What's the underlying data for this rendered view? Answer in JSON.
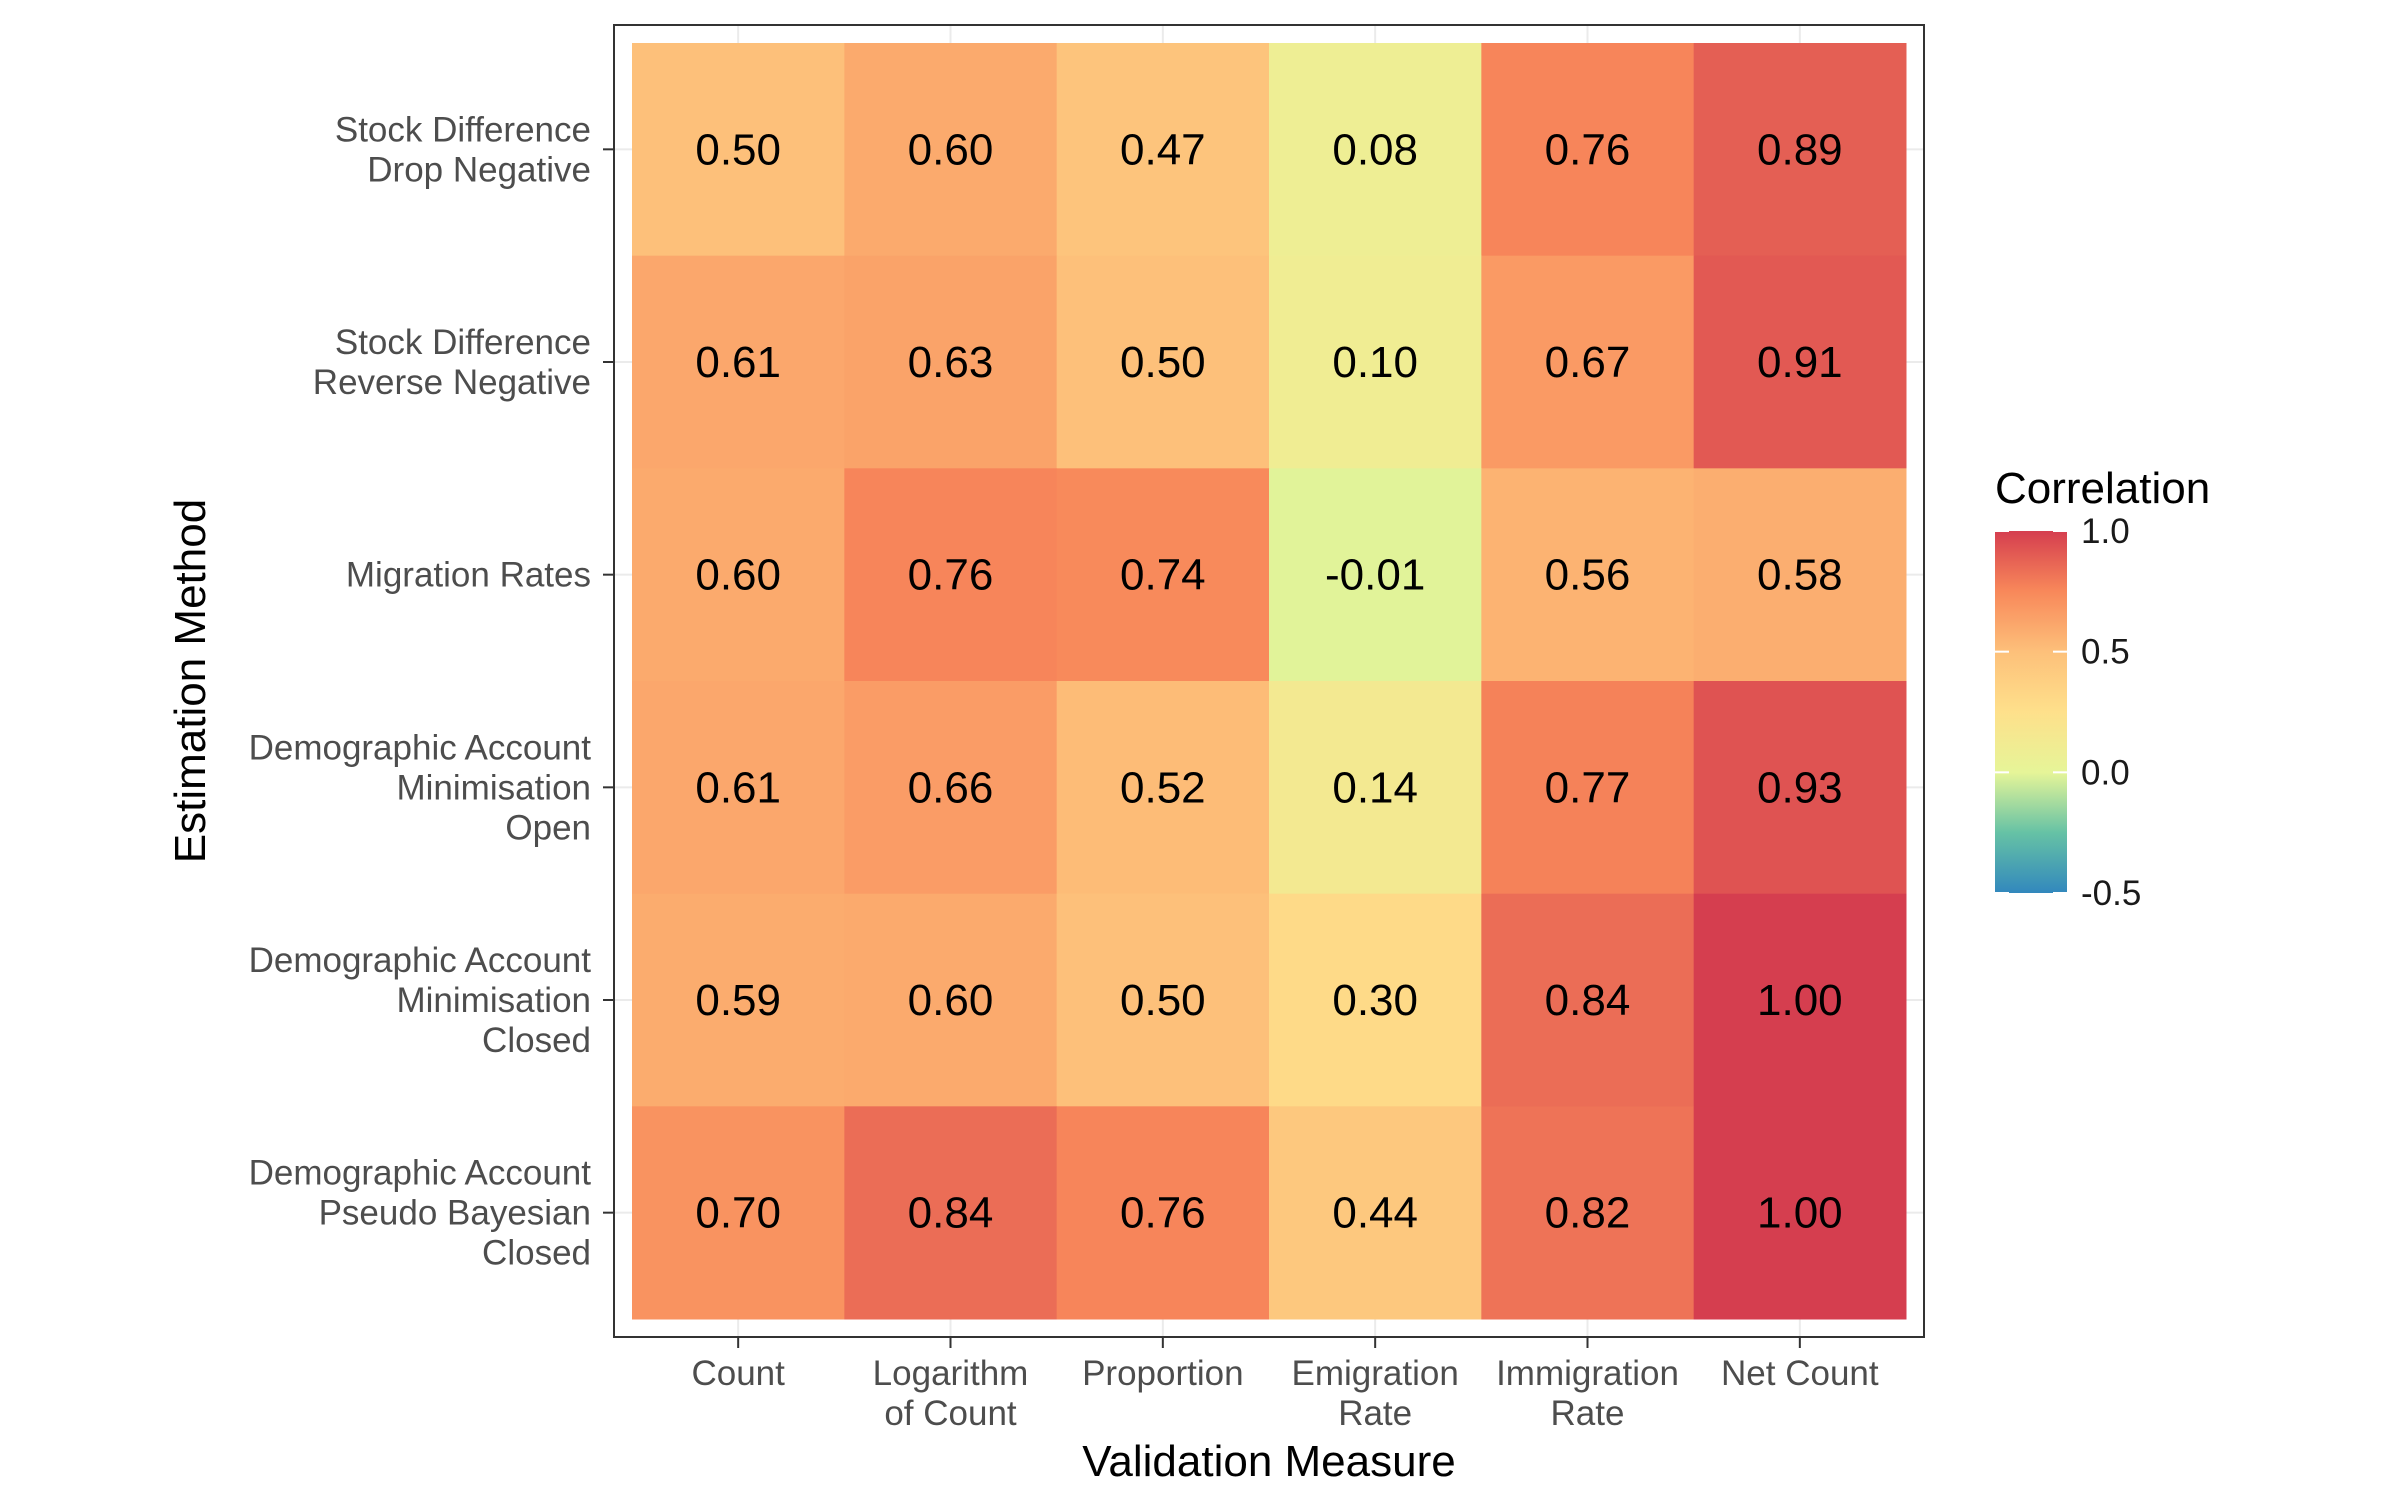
{
  "chart_data": {
    "type": "heatmap",
    "xlabel": "Validation Measure",
    "ylabel": "Estimation Method",
    "x_categories": [
      [
        "Count"
      ],
      [
        "Logarithm",
        "of Count"
      ],
      [
        "Proportion"
      ],
      [
        "Emigration",
        "Rate"
      ],
      [
        "Immigration",
        "Rate"
      ],
      [
        "Net Count"
      ]
    ],
    "y_categories": [
      [
        "Stock Difference",
        "Drop Negative"
      ],
      [
        "Stock Difference",
        "Reverse Negative"
      ],
      [
        "Migration Rates"
      ],
      [
        "Demographic Account",
        "Minimisation",
        "Open"
      ],
      [
        "Demographic Account",
        "Minimisation",
        "Closed"
      ],
      [
        "Demographic Account",
        "Pseudo Bayesian",
        "Closed"
      ]
    ],
    "values": [
      [
        0.5,
        0.6,
        0.47,
        0.08,
        0.76,
        0.89
      ],
      [
        0.61,
        0.63,
        0.5,
        0.1,
        0.67,
        0.91
      ],
      [
        0.6,
        0.76,
        0.74,
        -0.01,
        0.56,
        0.58
      ],
      [
        0.61,
        0.66,
        0.52,
        0.14,
        0.77,
        0.93
      ],
      [
        0.59,
        0.6,
        0.5,
        0.3,
        0.84,
        1.0
      ],
      [
        0.7,
        0.84,
        0.76,
        0.44,
        0.82,
        1.0
      ]
    ],
    "value_labels": [
      [
        "0.50",
        "0.60",
        "0.47",
        "0.08",
        "0.76",
        "0.89"
      ],
      [
        "0.61",
        "0.63",
        "0.50",
        "0.10",
        "0.67",
        "0.91"
      ],
      [
        "0.60",
        "0.76",
        "0.74",
        "-0.01",
        "0.56",
        "0.58"
      ],
      [
        "0.61",
        "0.66",
        "0.52",
        "0.14",
        "0.77",
        "0.93"
      ],
      [
        "0.59",
        "0.60",
        "0.50",
        "0.30",
        "0.84",
        "1.00"
      ],
      [
        "0.70",
        "0.84",
        "0.76",
        "0.44",
        "0.82",
        "1.00"
      ]
    ],
    "legend": {
      "title": "Correlation",
      "position": "right",
      "range": [
        -0.5,
        1.0
      ],
      "ticks": [
        1.0,
        0.5,
        0.0,
        -0.5
      ],
      "tick_labels": [
        "1.0",
        "0.5",
        "0.0",
        "-0.5"
      ],
      "color_stops": [
        {
          "value": -0.5,
          "color": "#3288bd"
        },
        {
          "value": -0.25,
          "color": "#66c2a5"
        },
        {
          "value": 0.0,
          "color": "#e6f598"
        },
        {
          "value": 0.25,
          "color": "#fee08b"
        },
        {
          "value": 0.5,
          "color": "#fdc07a"
        },
        {
          "value": 0.75,
          "color": "#f8885a"
        },
        {
          "value": 1.0,
          "color": "#d53e4f"
        }
      ]
    },
    "grid": true,
    "theme": "bw"
  }
}
